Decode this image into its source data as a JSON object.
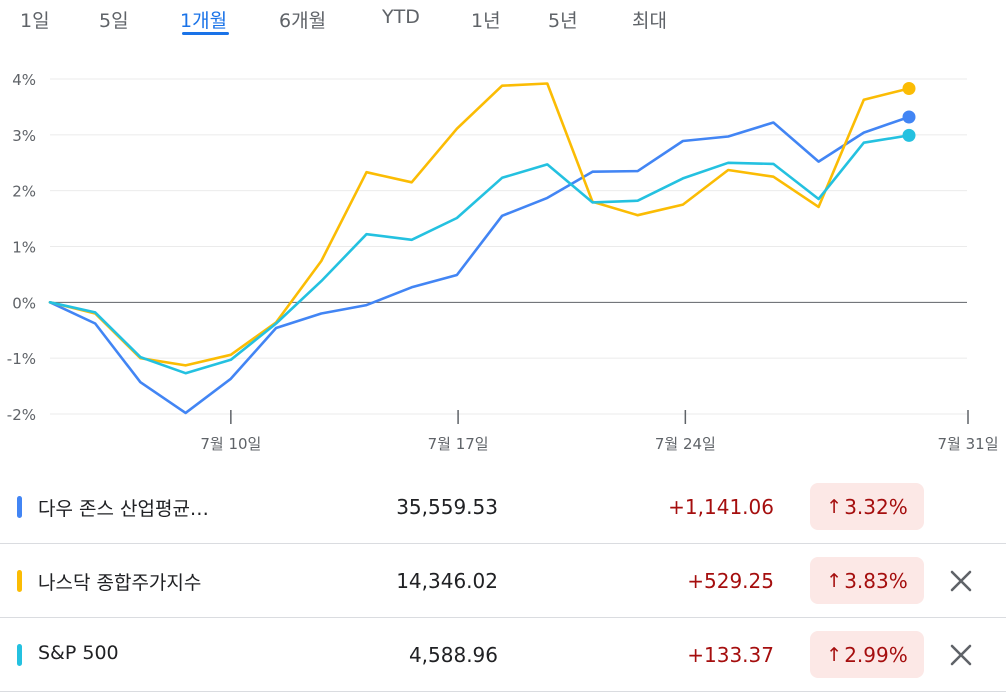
{
  "tabs": [
    {
      "label": "1일",
      "active": false
    },
    {
      "label": "5일",
      "active": false
    },
    {
      "label": "1개월",
      "active": true
    },
    {
      "label": "6개월",
      "active": false
    },
    {
      "label": "YTD",
      "active": false
    },
    {
      "label": "1년",
      "active": false
    },
    {
      "label": "5년",
      "active": false
    },
    {
      "label": "최대",
      "active": false
    }
  ],
  "chart_data": {
    "type": "line",
    "y_ticks": [
      "4%",
      "3%",
      "2%",
      "1%",
      "0%",
      "-1%",
      "-2%"
    ],
    "y_tick_values": [
      4,
      3,
      2,
      1,
      0,
      -1,
      -2
    ],
    "ylim": [
      -2,
      4
    ],
    "y_unit": "%",
    "x_tick_labels": [
      "7월 10일",
      "7월 17일",
      "7월 24일",
      "7월 31일"
    ],
    "x_tick_index": [
      4,
      9,
      14,
      19
    ],
    "grid": true,
    "baseline": 0,
    "series": [
      {
        "name": "다우 존스 산업평균지수",
        "color": "#4285f4",
        "values": [
          0,
          -0.38,
          -1.43,
          -1.98,
          -1.37,
          -0.46,
          -0.2,
          -0.05,
          0.27,
          0.49,
          1.55,
          1.87,
          2.34,
          2.35,
          2.89,
          2.97,
          3.22,
          2.52,
          3.04,
          3.32
        ]
      },
      {
        "name": "나스닥 종합주가지수",
        "color": "#fbbc04",
        "values": [
          0,
          -0.2,
          -1.0,
          -1.13,
          -0.94,
          -0.36,
          0.74,
          2.33,
          2.15,
          3.11,
          3.88,
          3.92,
          1.8,
          1.56,
          1.75,
          2.37,
          2.25,
          1.71,
          3.63,
          3.83
        ]
      },
      {
        "name": "S&P 500",
        "color": "#24c1e0",
        "values": [
          0,
          -0.18,
          -0.98,
          -1.27,
          -1.03,
          -0.38,
          0.38,
          1.22,
          1.12,
          1.51,
          2.23,
          2.47,
          1.79,
          1.82,
          2.22,
          2.5,
          2.48,
          1.85,
          2.86,
          2.99
        ]
      }
    ]
  },
  "rows": [
    {
      "name": "다우 존스 산업평균…",
      "price": "35,559.53",
      "change": "+1,141.06",
      "pct": "3.32%",
      "color": "#4285f4",
      "removable": false
    },
    {
      "name": "나스닥 종합주가지수",
      "price": "14,346.02",
      "change": "+529.25",
      "pct": "3.83%",
      "color": "#fbbc04",
      "removable": true
    },
    {
      "name": "S&P 500",
      "price": "4,588.96",
      "change": "+133.37",
      "pct": "2.99%",
      "color": "#24c1e0",
      "removable": true
    }
  ]
}
